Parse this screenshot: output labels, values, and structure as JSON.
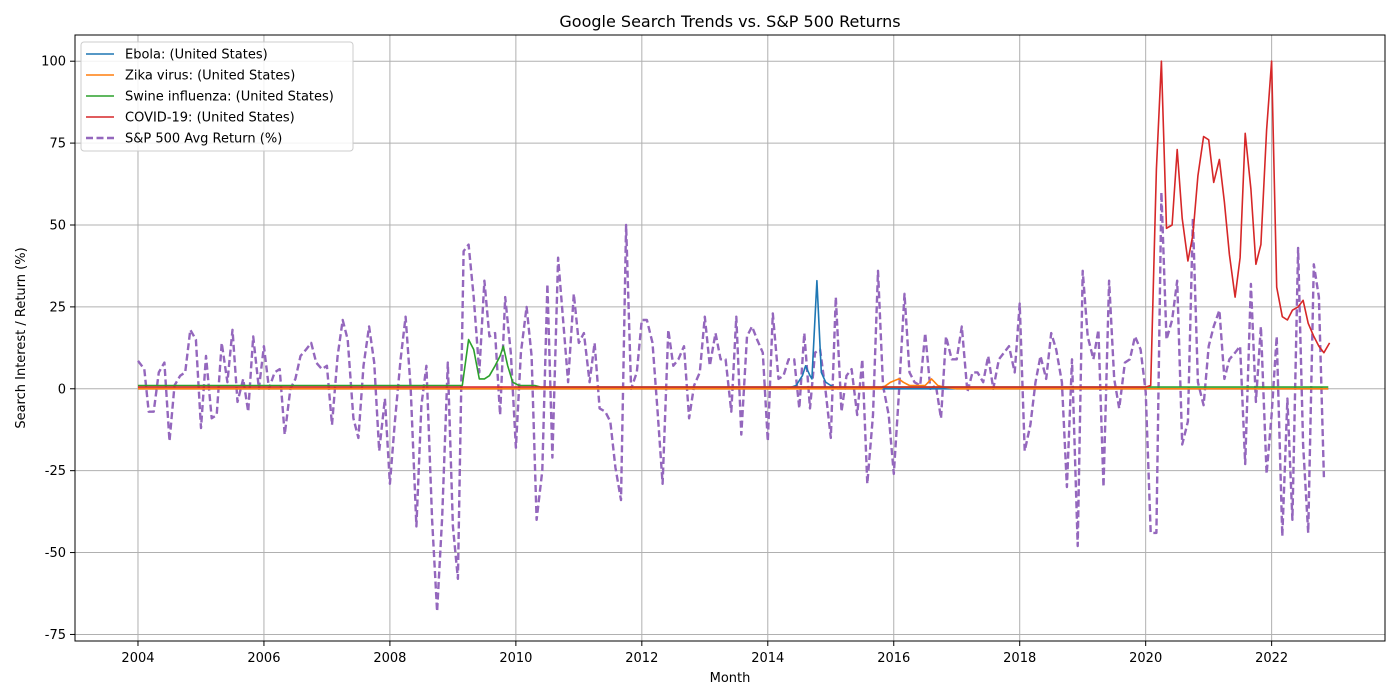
{
  "chart_data": {
    "type": "line",
    "title": "Google Search Trends vs. S&P 500 Returns",
    "xlabel": "Month",
    "ylabel": "Search Interest / Return (%)",
    "xlim": [
      2003.0,
      2023.8
    ],
    "ylim": [
      -77,
      108
    ],
    "x_ticks": [
      2004,
      2006,
      2008,
      2010,
      2012,
      2014,
      2016,
      2018,
      2020,
      2022
    ],
    "y_ticks": [
      -75,
      -50,
      -25,
      0,
      25,
      50,
      75,
      100
    ],
    "grid": true,
    "legend_position": "top-left",
    "series": [
      {
        "name": "Ebola: (United States)",
        "color": "#1f77b4",
        "style": "solid",
        "points": [
          [
            2004.0,
            0
          ],
          [
            2014.3,
            0
          ],
          [
            2014.45,
            1
          ],
          [
            2014.55,
            4
          ],
          [
            2014.6,
            7
          ],
          [
            2014.67,
            4
          ],
          [
            2014.7,
            3
          ],
          [
            2014.78,
            33
          ],
          [
            2014.85,
            5
          ],
          [
            2014.92,
            2
          ],
          [
            2015.0,
            1
          ],
          [
            2015.1,
            0
          ],
          [
            2022.9,
            0
          ]
        ]
      },
      {
        "name": "Zika virus: (United States)",
        "color": "#ff7f0e",
        "style": "solid",
        "points": [
          [
            2004.0,
            0
          ],
          [
            2015.8,
            0
          ],
          [
            2015.95,
            2
          ],
          [
            2016.08,
            3
          ],
          [
            2016.15,
            2
          ],
          [
            2016.25,
            1
          ],
          [
            2016.5,
            1
          ],
          [
            2016.6,
            3
          ],
          [
            2016.7,
            1
          ],
          [
            2016.8,
            0.5
          ],
          [
            2017.0,
            0
          ],
          [
            2022.9,
            0
          ]
        ]
      },
      {
        "name": "Swine influenza: (United States)",
        "color": "#2ca02c",
        "style": "solid",
        "points": [
          [
            2004.0,
            1
          ],
          [
            2009.15,
            1
          ],
          [
            2009.25,
            15
          ],
          [
            2009.33,
            12
          ],
          [
            2009.42,
            3
          ],
          [
            2009.5,
            3
          ],
          [
            2009.58,
            4
          ],
          [
            2009.67,
            7
          ],
          [
            2009.75,
            10
          ],
          [
            2009.8,
            13
          ],
          [
            2009.87,
            7
          ],
          [
            2009.95,
            2
          ],
          [
            2010.05,
            1
          ],
          [
            2010.3,
            1
          ],
          [
            2010.4,
            0.5
          ],
          [
            2022.9,
            0.5
          ]
        ]
      },
      {
        "name": "COVID-19: (United States)",
        "color": "#d62728",
        "style": "solid",
        "points": [
          [
            2004.0,
            0.5
          ],
          [
            2020.0,
            0.5
          ],
          [
            2020.08,
            1
          ],
          [
            2020.17,
            67
          ],
          [
            2020.25,
            100
          ],
          [
            2020.33,
            49
          ],
          [
            2020.42,
            50
          ],
          [
            2020.5,
            73
          ],
          [
            2020.58,
            52
          ],
          [
            2020.67,
            39
          ],
          [
            2020.75,
            47
          ],
          [
            2020.83,
            65
          ],
          [
            2020.92,
            77
          ],
          [
            2021.0,
            76
          ],
          [
            2021.08,
            63
          ],
          [
            2021.17,
            70
          ],
          [
            2021.25,
            57
          ],
          [
            2021.33,
            41
          ],
          [
            2021.42,
            28
          ],
          [
            2021.5,
            40
          ],
          [
            2021.58,
            78
          ],
          [
            2021.67,
            61
          ],
          [
            2021.75,
            38
          ],
          [
            2021.83,
            44
          ],
          [
            2021.92,
            79
          ],
          [
            2022.0,
            100
          ],
          [
            2022.08,
            31
          ],
          [
            2022.17,
            22
          ],
          [
            2022.25,
            21
          ],
          [
            2022.33,
            24
          ],
          [
            2022.42,
            25
          ],
          [
            2022.5,
            27
          ],
          [
            2022.58,
            20
          ],
          [
            2022.67,
            16
          ],
          [
            2022.75,
            13
          ],
          [
            2022.83,
            11
          ],
          [
            2022.92,
            14
          ]
        ]
      },
      {
        "name": "S&P 500 Avg Return (%)",
        "color": "#9467bd",
        "style": "dashed",
        "points": [
          [
            2004.0,
            8.5
          ],
          [
            2004.1,
            6
          ],
          [
            2004.17,
            -7
          ],
          [
            2004.25,
            -7
          ],
          [
            2004.33,
            5
          ],
          [
            2004.42,
            8
          ],
          [
            2004.5,
            -16
          ],
          [
            2004.58,
            1
          ],
          [
            2004.67,
            4
          ],
          [
            2004.75,
            5
          ],
          [
            2004.83,
            18
          ],
          [
            2004.92,
            15
          ],
          [
            2005.0,
            -12
          ],
          [
            2005.08,
            10
          ],
          [
            2005.17,
            -9
          ],
          [
            2005.25,
            -8
          ],
          [
            2005.33,
            14
          ],
          [
            2005.42,
            2
          ],
          [
            2005.5,
            18
          ],
          [
            2005.58,
            -4
          ],
          [
            2005.67,
            3
          ],
          [
            2005.75,
            -7
          ],
          [
            2005.83,
            16
          ],
          [
            2005.92,
            0
          ],
          [
            2006.0,
            13
          ],
          [
            2006.08,
            0
          ],
          [
            2006.17,
            5
          ],
          [
            2006.25,
            6
          ],
          [
            2006.33,
            -14
          ],
          [
            2006.42,
            0
          ],
          [
            2006.5,
            3
          ],
          [
            2006.58,
            10
          ],
          [
            2006.67,
            12
          ],
          [
            2006.75,
            14
          ],
          [
            2006.83,
            8
          ],
          [
            2006.92,
            6
          ],
          [
            2007.0,
            7
          ],
          [
            2007.08,
            -11
          ],
          [
            2007.17,
            10
          ],
          [
            2007.25,
            21
          ],
          [
            2007.33,
            15
          ],
          [
            2007.42,
            -9
          ],
          [
            2007.5,
            -15
          ],
          [
            2007.58,
            7
          ],
          [
            2007.67,
            19
          ],
          [
            2007.75,
            8
          ],
          [
            2007.83,
            -19
          ],
          [
            2007.92,
            -3
          ],
          [
            2008.0,
            -29
          ],
          [
            2008.08,
            -10
          ],
          [
            2008.17,
            9
          ],
          [
            2008.25,
            22
          ],
          [
            2008.33,
            0
          ],
          [
            2008.42,
            -42
          ],
          [
            2008.5,
            -5
          ],
          [
            2008.58,
            7
          ],
          [
            2008.67,
            -40
          ],
          [
            2008.75,
            -68
          ],
          [
            2008.83,
            -39
          ],
          [
            2008.92,
            8
          ],
          [
            2009.0,
            -42
          ],
          [
            2009.08,
            -58
          ],
          [
            2009.17,
            42
          ],
          [
            2009.25,
            44
          ],
          [
            2009.33,
            28
          ],
          [
            2009.42,
            5
          ],
          [
            2009.5,
            33
          ],
          [
            2009.58,
            16
          ],
          [
            2009.67,
            17
          ],
          [
            2009.75,
            -8
          ],
          [
            2009.83,
            28
          ],
          [
            2009.92,
            11
          ],
          [
            2010.0,
            -18
          ],
          [
            2010.08,
            11
          ],
          [
            2010.17,
            25
          ],
          [
            2010.25,
            10
          ],
          [
            2010.33,
            -40
          ],
          [
            2010.42,
            -25
          ],
          [
            2010.5,
            32
          ],
          [
            2010.58,
            -21
          ],
          [
            2010.67,
            40
          ],
          [
            2010.75,
            21
          ],
          [
            2010.83,
            2
          ],
          [
            2010.92,
            29
          ],
          [
            2011.0,
            14
          ],
          [
            2011.08,
            17
          ],
          [
            2011.17,
            2
          ],
          [
            2011.25,
            14
          ],
          [
            2011.33,
            -6
          ],
          [
            2011.42,
            -7
          ],
          [
            2011.5,
            -10
          ],
          [
            2011.58,
            -24
          ],
          [
            2011.67,
            -34
          ],
          [
            2011.75,
            50
          ],
          [
            2011.83,
            0
          ],
          [
            2011.92,
            5
          ],
          [
            2012.0,
            21
          ],
          [
            2012.08,
            21
          ],
          [
            2012.17,
            14
          ],
          [
            2012.25,
            -7
          ],
          [
            2012.33,
            -29
          ],
          [
            2012.42,
            18
          ],
          [
            2012.5,
            7
          ],
          [
            2012.58,
            9
          ],
          [
            2012.67,
            13
          ],
          [
            2012.75,
            -9
          ],
          [
            2012.83,
            1
          ],
          [
            2012.92,
            5
          ],
          [
            2013.0,
            22
          ],
          [
            2013.08,
            7
          ],
          [
            2013.17,
            17
          ],
          [
            2013.25,
            9
          ],
          [
            2013.33,
            9
          ],
          [
            2013.42,
            -7
          ],
          [
            2013.5,
            22
          ],
          [
            2013.58,
            -14
          ],
          [
            2013.67,
            16
          ],
          [
            2013.75,
            19
          ],
          [
            2013.83,
            15
          ],
          [
            2013.92,
            11
          ],
          [
            2014.0,
            -16
          ],
          [
            2014.08,
            23
          ],
          [
            2014.17,
            3
          ],
          [
            2014.25,
            4
          ],
          [
            2014.33,
            9
          ],
          [
            2014.42,
            9
          ],
          [
            2014.5,
            -6
          ],
          [
            2014.58,
            17
          ],
          [
            2014.67,
            -6
          ],
          [
            2014.75,
            11
          ],
          [
            2014.83,
            12
          ],
          [
            2014.92,
            -1
          ],
          [
            2015.0,
            -15
          ],
          [
            2015.08,
            28
          ],
          [
            2015.17,
            -7
          ],
          [
            2015.25,
            4
          ],
          [
            2015.33,
            6
          ],
          [
            2015.42,
            -8
          ],
          [
            2015.5,
            9
          ],
          [
            2015.58,
            -29
          ],
          [
            2015.67,
            -8
          ],
          [
            2015.75,
            36
          ],
          [
            2015.83,
            1
          ],
          [
            2015.92,
            -8
          ],
          [
            2016.0,
            -26
          ],
          [
            2016.08,
            -2
          ],
          [
            2016.17,
            29
          ],
          [
            2016.25,
            5
          ],
          [
            2016.33,
            2
          ],
          [
            2016.42,
            1
          ],
          [
            2016.5,
            17
          ],
          [
            2016.58,
            0
          ],
          [
            2016.67,
            1
          ],
          [
            2016.75,
            -9
          ],
          [
            2016.83,
            16
          ],
          [
            2016.92,
            9
          ],
          [
            2017.0,
            9
          ],
          [
            2017.08,
            19
          ],
          [
            2017.17,
            -1
          ],
          [
            2017.25,
            5
          ],
          [
            2017.33,
            5
          ],
          [
            2017.42,
            2
          ],
          [
            2017.5,
            10
          ],
          [
            2017.58,
            0
          ],
          [
            2017.67,
            9
          ],
          [
            2017.75,
            11
          ],
          [
            2017.83,
            13
          ],
          [
            2017.92,
            5
          ],
          [
            2018.0,
            26
          ],
          [
            2018.08,
            -19
          ],
          [
            2018.17,
            -11
          ],
          [
            2018.25,
            2
          ],
          [
            2018.33,
            10
          ],
          [
            2018.42,
            3
          ],
          [
            2018.5,
            17
          ],
          [
            2018.58,
            12
          ],
          [
            2018.67,
            2
          ],
          [
            2018.75,
            -30
          ],
          [
            2018.83,
            9
          ],
          [
            2018.92,
            -48
          ],
          [
            2019.0,
            36
          ],
          [
            2019.08,
            16
          ],
          [
            2019.17,
            9
          ],
          [
            2019.25,
            18
          ],
          [
            2019.33,
            -30
          ],
          [
            2019.42,
            33
          ],
          [
            2019.5,
            3
          ],
          [
            2019.58,
            -6
          ],
          [
            2019.67,
            8
          ],
          [
            2019.75,
            9
          ],
          [
            2019.83,
            16
          ],
          [
            2019.92,
            12
          ],
          [
            2020.0,
            -1
          ],
          [
            2020.08,
            -44
          ],
          [
            2020.17,
            -44
          ],
          [
            2020.25,
            60
          ],
          [
            2020.33,
            15
          ],
          [
            2020.42,
            21
          ],
          [
            2020.5,
            33
          ],
          [
            2020.58,
            -17
          ],
          [
            2020.67,
            -10
          ],
          [
            2020.75,
            52
          ],
          [
            2020.83,
            2
          ],
          [
            2020.92,
            -5
          ],
          [
            2021.0,
            13
          ],
          [
            2021.08,
            19
          ],
          [
            2021.17,
            24
          ],
          [
            2021.25,
            3
          ],
          [
            2021.33,
            9
          ],
          [
            2021.42,
            11
          ],
          [
            2021.5,
            13
          ],
          [
            2021.58,
            -23
          ],
          [
            2021.67,
            32
          ],
          [
            2021.75,
            -4
          ],
          [
            2021.83,
            19
          ],
          [
            2021.92,
            -26
          ],
          [
            2022.0,
            -8
          ],
          [
            2022.08,
            16
          ],
          [
            2022.17,
            -45
          ],
          [
            2022.25,
            -3
          ],
          [
            2022.33,
            -40
          ],
          [
            2022.42,
            43
          ],
          [
            2022.5,
            -17
          ],
          [
            2022.58,
            -44
          ],
          [
            2022.67,
            38
          ],
          [
            2022.75,
            28
          ],
          [
            2022.83,
            -27
          ]
        ]
      }
    ]
  }
}
